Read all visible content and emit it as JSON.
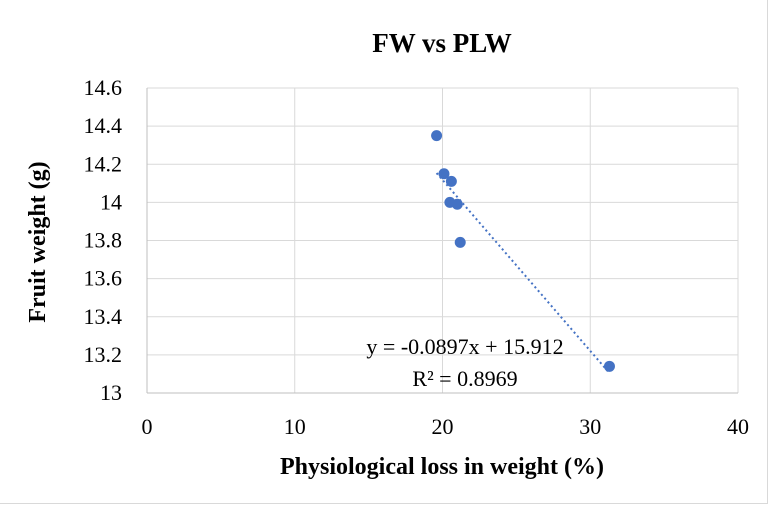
{
  "chart_data": {
    "type": "scatter",
    "title": "FW vs PLW",
    "xlabel": "Physiological loss in weight (%)",
    "ylabel": "Fruit weight (g)",
    "xlim": [
      0,
      40
    ],
    "ylim": [
      13,
      14.6
    ],
    "x_ticks": [
      0,
      10,
      20,
      30,
      40
    ],
    "y_ticks": [
      13,
      13.2,
      13.4,
      13.6,
      13.8,
      14,
      14.2,
      14.4,
      14.6
    ],
    "y_tick_labels": [
      "13",
      "13.2",
      "13.4",
      "13.6",
      "13.8",
      "14",
      "14.2",
      "14.4",
      "14.6"
    ],
    "grid": true,
    "marker_color": "#4472C4",
    "series": [
      {
        "points": [
          {
            "x": 19.6,
            "y": 14.35
          },
          {
            "x": 20.1,
            "y": 14.15
          },
          {
            "x": 20.6,
            "y": 14.11
          },
          {
            "x": 20.5,
            "y": 14.0
          },
          {
            "x": 21.0,
            "y": 13.99
          },
          {
            "x": 21.2,
            "y": 13.79
          },
          {
            "x": 31.3,
            "y": 13.14
          }
        ]
      }
    ],
    "trendline": {
      "type": "linear",
      "slope": -0.0897,
      "intercept": 15.912,
      "x_range": [
        19.6,
        31.3
      ],
      "style": "dotted",
      "equation": "y = -0.0897x + 15.912",
      "r_squared": "R² = 0.8969"
    }
  }
}
